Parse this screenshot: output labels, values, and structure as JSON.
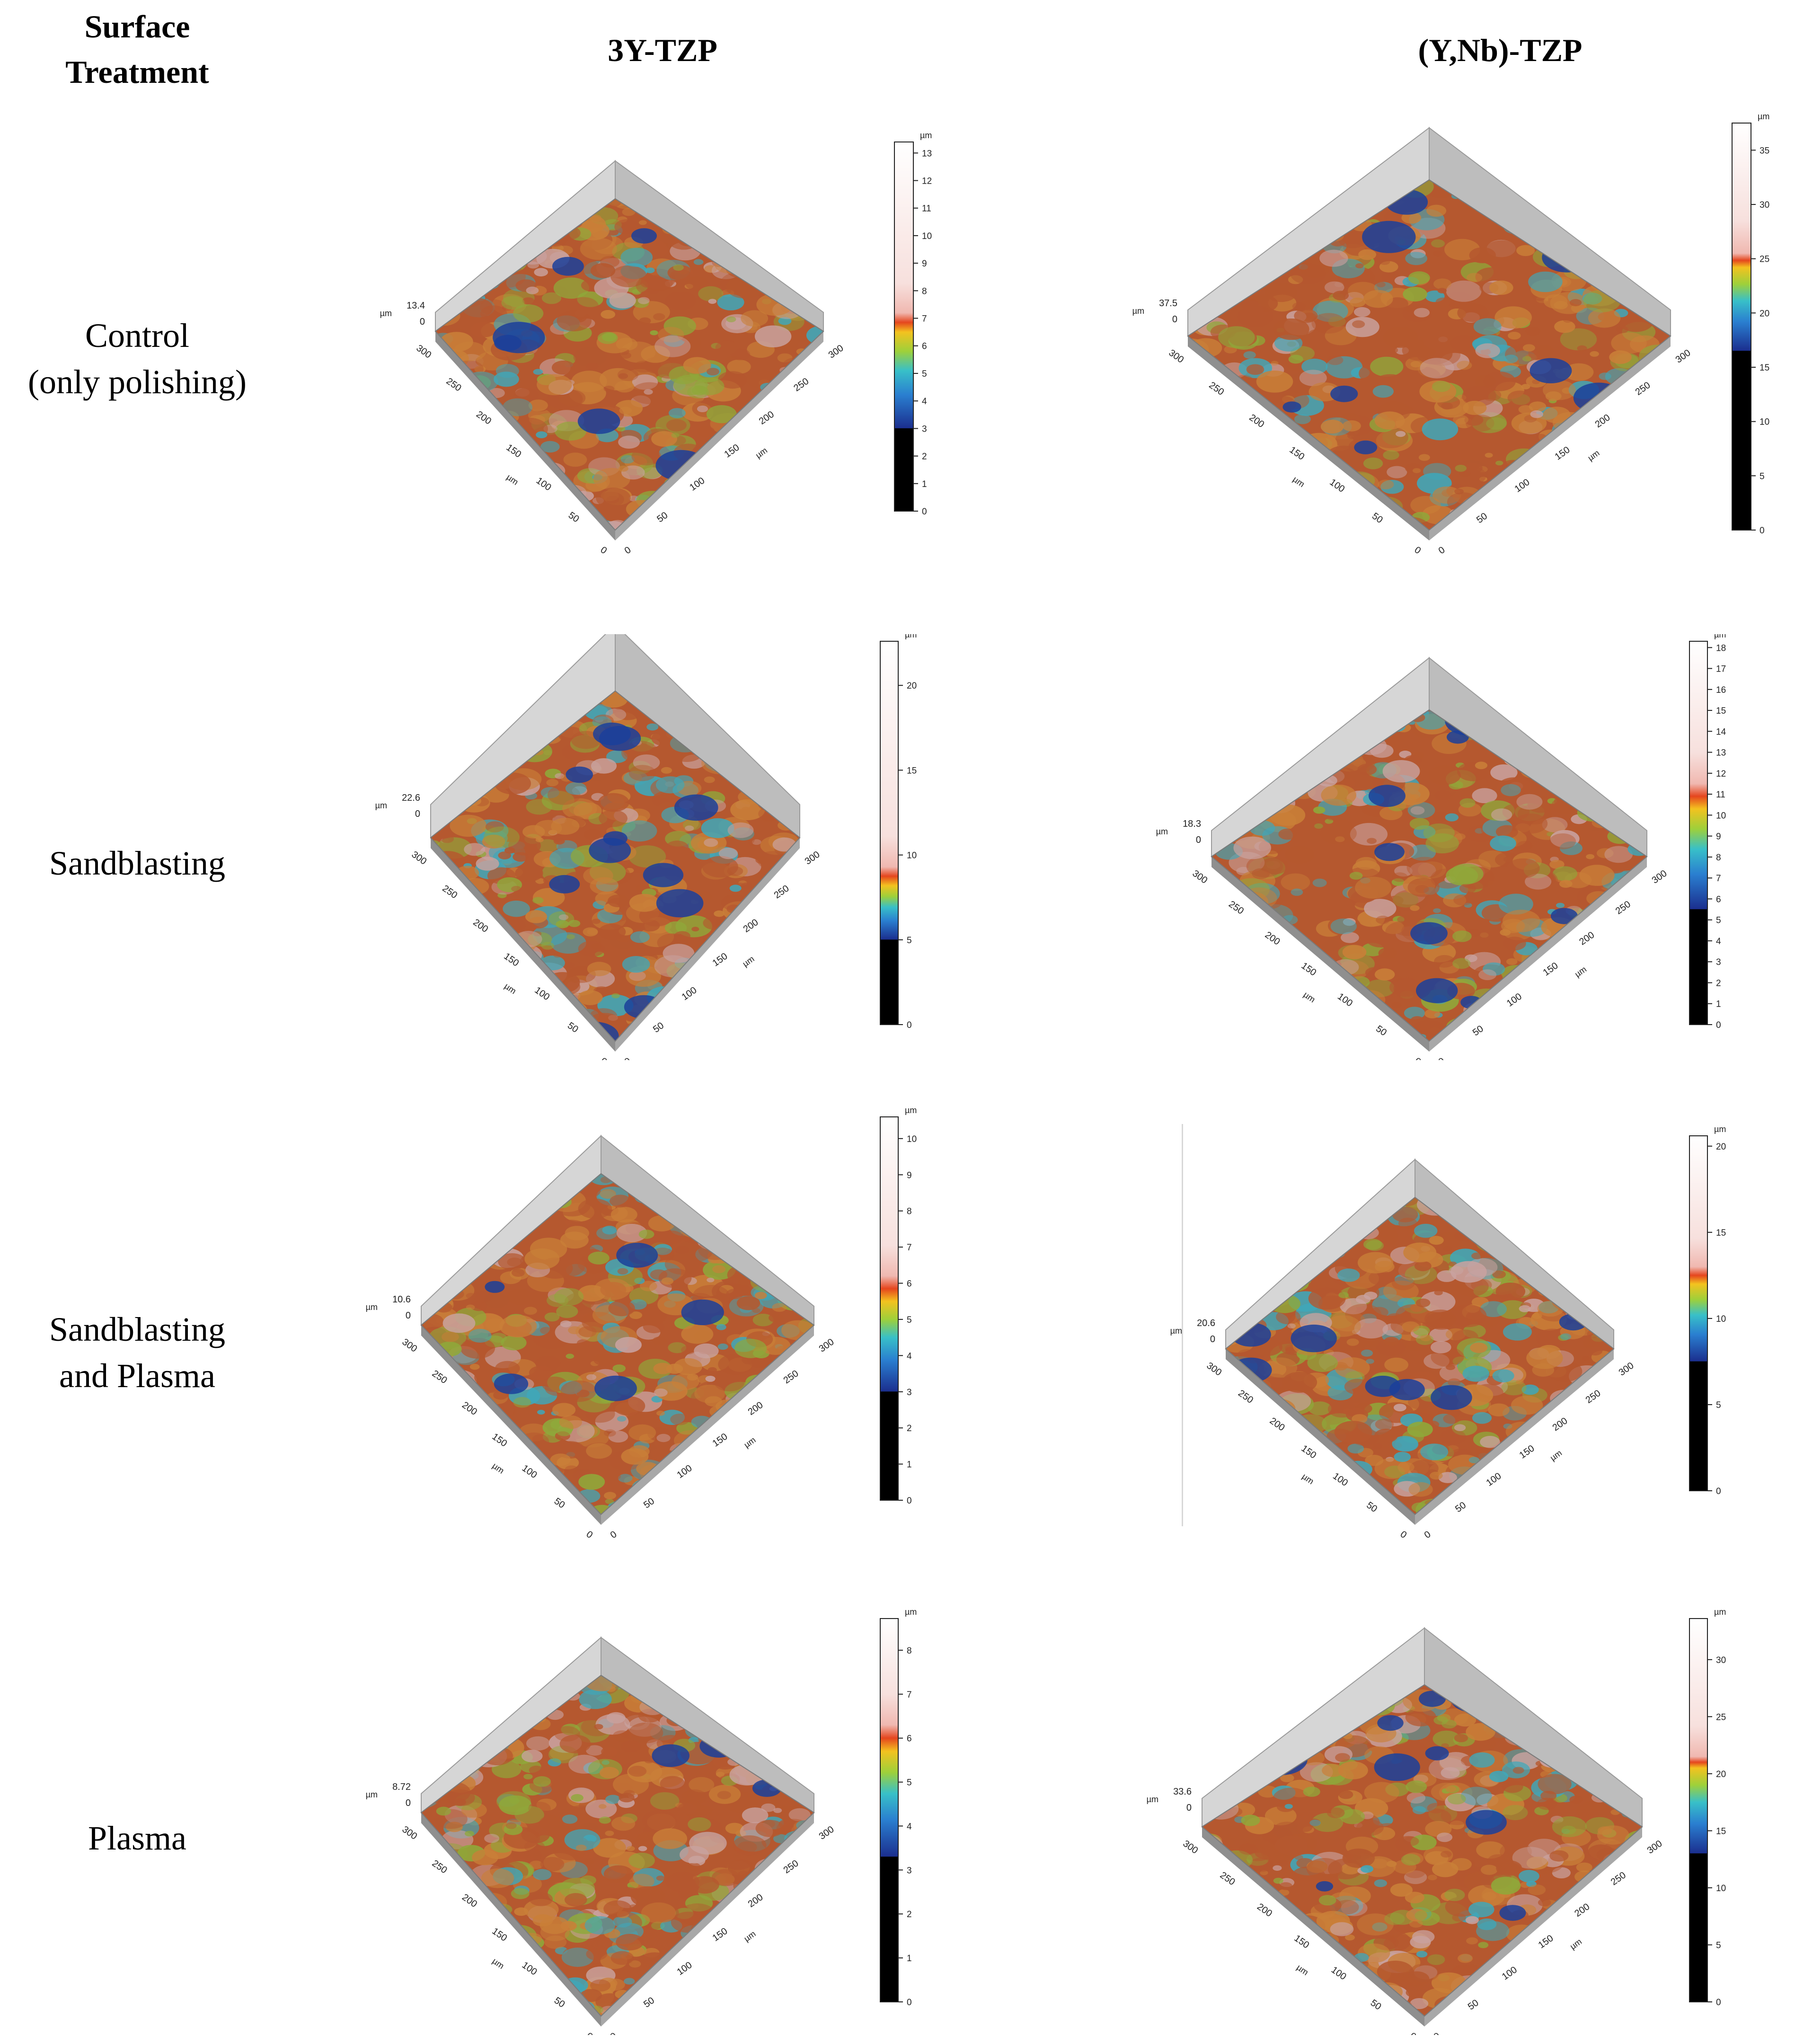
{
  "header": {
    "col0_line1": "Surface",
    "col0_line2": "Treatment",
    "col1": "3Y-TZP",
    "col2": "(Y,Nb)-TZP"
  },
  "rows": [
    {
      "line1": "Control",
      "line2": "(only polishing)"
    },
    {
      "line1": "Sandblasting",
      "line2": ""
    },
    {
      "line1": "Sandblasting",
      "line2": "and Plasma"
    },
    {
      "line1": "Plasma",
      "line2": ""
    }
  ],
  "axis": {
    "unit": "µm",
    "xy_ticks": [
      "0",
      "50",
      "100",
      "150",
      "200",
      "250",
      "300"
    ]
  },
  "plots": [
    {
      "id": "control-3y",
      "zmax_label": "13.4",
      "scale_ticks": [
        "0",
        "1",
        "2",
        "3",
        "4",
        "5",
        "6",
        "7",
        "8",
        "9",
        "10",
        "11",
        "12",
        "13"
      ],
      "scale_max": 13.4,
      "black_below": 3.0,
      "hot_band": [
        6.5,
        7.2
      ]
    },
    {
      "id": "control-ynb",
      "zmax_label": "37.5",
      "scale_ticks": [
        "0",
        "5",
        "10",
        "15",
        "20",
        "25",
        "30",
        "35"
      ],
      "scale_max": 37.5,
      "black_below": 16.5,
      "hot_band": [
        24.2,
        25.5
      ]
    },
    {
      "id": "sand-3y",
      "zmax_label": "22.6",
      "scale_ticks": [
        "0",
        "5",
        "10",
        "15",
        "20"
      ],
      "scale_max": 22.6,
      "black_below": 5.0,
      "hot_band": [
        8.2,
        9.3
      ]
    },
    {
      "id": "sand-ynb",
      "zmax_label": "18.3",
      "scale_ticks": [
        "0",
        "1",
        "2",
        "3",
        "4",
        "5",
        "6",
        "7",
        "8",
        "9",
        "10",
        "11",
        "12",
        "13",
        "14",
        "15",
        "16",
        "17",
        "18"
      ],
      "scale_max": 18.3,
      "black_below": 5.5,
      "hot_band": [
        10.3,
        11.5
      ]
    },
    {
      "id": "sandplasma-3y",
      "zmax_label": "10.6",
      "scale_ticks": [
        "0",
        "1",
        "2",
        "3",
        "4",
        "5",
        "6",
        "7",
        "8",
        "9",
        "10"
      ],
      "scale_max": 10.6,
      "black_below": 3.0,
      "hot_band": [
        5.5,
        6.2
      ]
    },
    {
      "id": "sandplasma-ynb",
      "zmax_label": "20.6",
      "scale_ticks": [
        "0",
        "5",
        "10",
        "15",
        "20"
      ],
      "scale_max": 20.6,
      "black_below": 7.5,
      "hot_band": [
        12.0,
        13.0
      ]
    },
    {
      "id": "plasma-3y",
      "zmax_label": "8.72",
      "scale_ticks": [
        "0",
        "1",
        "2",
        "3",
        "4",
        "5",
        "6",
        "7",
        "8"
      ],
      "scale_max": 8.72,
      "black_below": 3.3,
      "hot_band": [
        5.7,
        6.3
      ]
    },
    {
      "id": "plasma-ynb",
      "zmax_label": "33.6",
      "scale_ticks": [
        "0",
        "5",
        "10",
        "15",
        "20",
        "25",
        "30"
      ],
      "scale_max": 33.6,
      "black_below": 13.0,
      "hot_band": [
        20.5,
        21.5
      ]
    }
  ],
  "colors": {
    "surface_red": "#b5582f",
    "surface_orange": "#c97f38",
    "surface_green": "#8fa83a",
    "surface_cyan": "#3fa7b9",
    "surface_blue": "#1b3f9a",
    "surface_pink": "#c9a29f",
    "wall": "#c9c9c9"
  }
}
